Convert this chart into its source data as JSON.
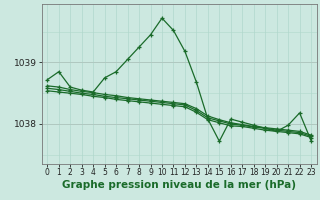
{
  "bg_color": "#cce8e0",
  "plot_bg_color": "#cce8e0",
  "grid_color_v": "#b0d8cc",
  "grid_color_h": "#b0c8c0",
  "line_color": "#1a6b2a",
  "xlabel": "Graphe pression niveau de la mer (hPa)",
  "xlabel_fontsize": 7.5,
  "ylabel_fontsize": 7,
  "title": "",
  "ylim": [
    1037.35,
    1039.95
  ],
  "xlim": [
    -0.5,
    23.5
  ],
  "yticks": [
    1038,
    1039
  ],
  "xticks": [
    0,
    1,
    2,
    3,
    4,
    5,
    6,
    7,
    8,
    9,
    10,
    11,
    12,
    13,
    14,
    15,
    16,
    17,
    18,
    19,
    20,
    21,
    22,
    23
  ],
  "lines": [
    {
      "x": [
        0,
        1,
        2,
        3,
        4,
        5,
        6,
        7,
        8,
        9,
        10,
        11,
        12,
        13,
        14,
        15,
        16,
        17,
        18,
        19,
        20,
        21,
        22,
        23
      ],
      "y": [
        1038.72,
        1038.85,
        1038.6,
        1038.55,
        1038.52,
        1038.75,
        1038.85,
        1039.05,
        1039.25,
        1039.45,
        1039.72,
        1039.52,
        1039.18,
        1038.68,
        1038.08,
        1037.72,
        1038.08,
        1038.03,
        1037.98,
        1037.93,
        1037.88,
        1037.98,
        1038.18,
        1037.73
      ]
    },
    {
      "x": [
        0,
        1,
        2,
        3,
        4,
        5,
        6,
        7,
        8,
        9,
        10,
        11,
        12,
        13,
        14,
        15,
        16,
        17,
        18,
        19,
        20,
        21,
        22,
        23
      ],
      "y": [
        1038.58,
        1038.56,
        1038.53,
        1038.5,
        1038.48,
        1038.45,
        1038.43,
        1038.41,
        1038.39,
        1038.37,
        1038.35,
        1038.33,
        1038.31,
        1038.22,
        1038.1,
        1038.05,
        1038.0,
        1037.98,
        1037.95,
        1037.93,
        1037.9,
        1037.88,
        1037.86,
        1037.8
      ]
    },
    {
      "x": [
        0,
        1,
        2,
        3,
        4,
        5,
        6,
        7,
        8,
        9,
        10,
        11,
        12,
        13,
        14,
        15,
        16,
        17,
        18,
        19,
        20,
        21,
        22,
        23
      ],
      "y": [
        1038.62,
        1038.6,
        1038.56,
        1038.53,
        1038.51,
        1038.48,
        1038.46,
        1038.43,
        1038.41,
        1038.39,
        1038.37,
        1038.35,
        1038.33,
        1038.25,
        1038.13,
        1038.07,
        1038.02,
        1037.99,
        1037.96,
        1037.94,
        1037.92,
        1037.9,
        1037.88,
        1037.82
      ]
    },
    {
      "x": [
        0,
        1,
        2,
        3,
        4,
        5,
        6,
        7,
        8,
        9,
        10,
        11,
        12,
        13,
        14,
        15,
        16,
        17,
        18,
        19,
        20,
        21,
        22,
        23
      ],
      "y": [
        1038.54,
        1038.52,
        1038.5,
        1038.48,
        1038.45,
        1038.43,
        1038.4,
        1038.38,
        1038.36,
        1038.34,
        1038.32,
        1038.3,
        1038.28,
        1038.19,
        1038.07,
        1038.02,
        1037.97,
        1037.96,
        1037.93,
        1037.9,
        1037.88,
        1037.86,
        1037.84,
        1037.78
      ]
    }
  ],
  "marker": "+",
  "markersize": 3.5,
  "linewidth": 0.9
}
